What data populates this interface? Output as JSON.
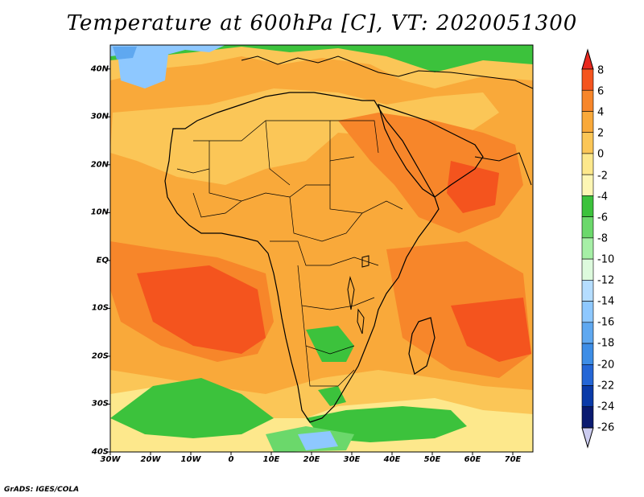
{
  "title": "Temperature at 600hPa [C], VT: 2020051300",
  "footer": "GrADS: IGES/COLA",
  "map": {
    "lat_labels": [
      "40N",
      "30N",
      "20N",
      "10N",
      "EQ",
      "10S",
      "20S",
      "30S",
      "40S"
    ],
    "lon_labels": [
      "30W",
      "20W",
      "10W",
      "0",
      "10E",
      "20E",
      "30E",
      "40E",
      "50E",
      "60E",
      "70E"
    ],
    "lat_range": [
      -40,
      45
    ],
    "lon_range": [
      -30,
      75
    ]
  },
  "colorbar": {
    "labels": [
      "8",
      "6",
      "4",
      "2",
      "0",
      "-2",
      "-4",
      "-6",
      "-8",
      "-10",
      "-12",
      "-14",
      "-16",
      "-18",
      "-20",
      "-22",
      "-24",
      "-26"
    ],
    "colors": [
      "#e8281e",
      "#f4541e",
      "#f7862a",
      "#f9a93a",
      "#fbc657",
      "#fde88c",
      "#fdf6b4",
      "#3cc23c",
      "#6bd86b",
      "#a6efa6",
      "#ddfadd",
      "#b5ddff",
      "#8ec8ff",
      "#5fa8f0",
      "#3d8de6",
      "#2466d6",
      "#0a3aa8",
      "#0a1a70",
      "#ccccf0"
    ]
  },
  "colors": {
    "warm": "#f9a93a",
    "hot": "#f7862a",
    "hotter": "#f4541e",
    "mild": "#fbc657",
    "cool": "#fde88c",
    "green": "#3cc23c",
    "lightgreen": "#6bd86b",
    "paleblue": "#8ec8ff",
    "blue": "#5fa8f0"
  }
}
